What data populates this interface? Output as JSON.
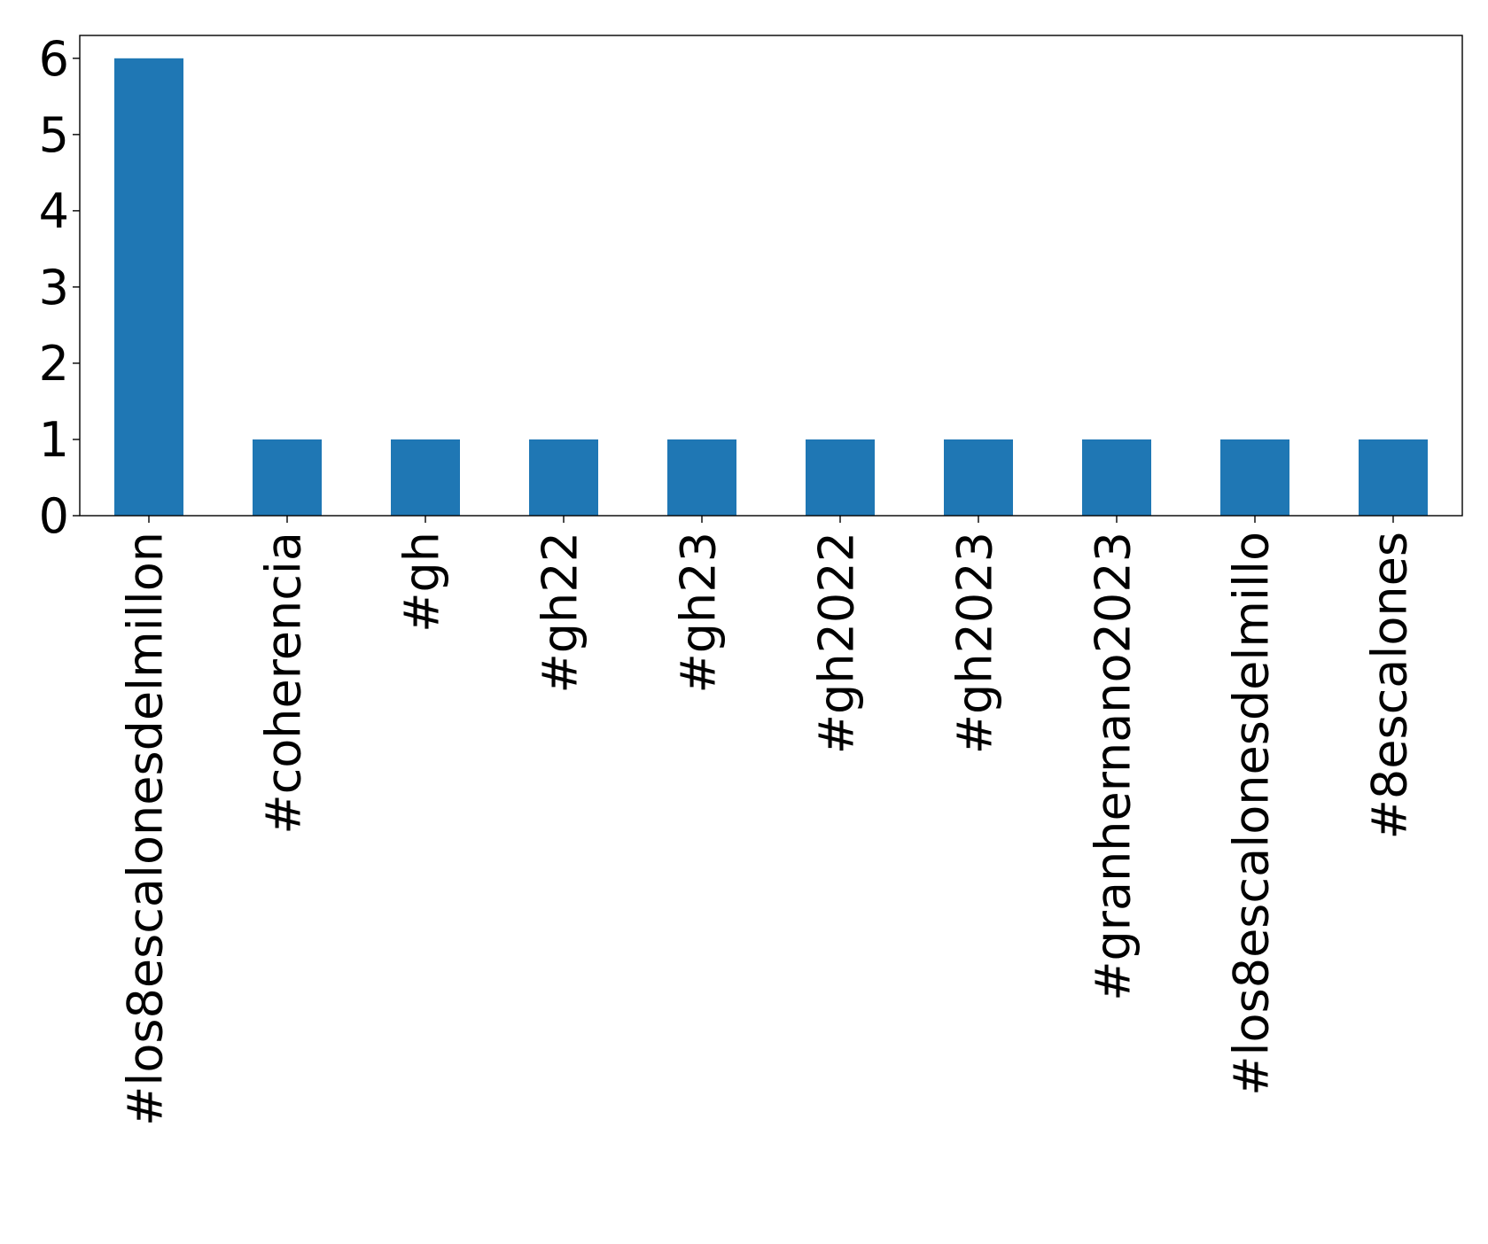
{
  "chart_data": {
    "type": "bar",
    "title": "",
    "xlabel": "",
    "ylabel": "",
    "categories": [
      "#los8escalonesdelmillon",
      "#coherencia",
      "#gh",
      "#gh22",
      "#gh23",
      "#gh2022",
      "#gh2023",
      "#granhernano2023",
      "#los8escalonesdelmillo",
      "#8escalones"
    ],
    "values": [
      6,
      1,
      1,
      1,
      1,
      1,
      1,
      1,
      1,
      1
    ],
    "ylim": [
      0,
      6.3
    ],
    "yticks": [
      "0",
      "1",
      "2",
      "3",
      "4",
      "5",
      "6"
    ],
    "bar_color": "#1f77b4",
    "grid": false,
    "legend": "none"
  }
}
